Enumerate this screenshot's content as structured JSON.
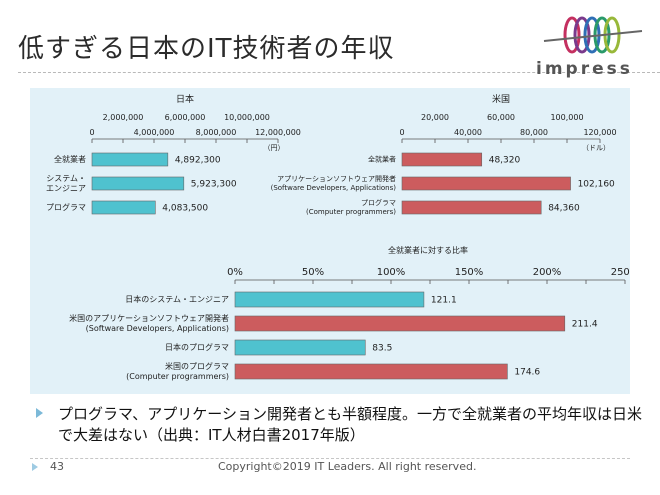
{
  "slide": {
    "title": "低すぎる日本のIT技術者の年収",
    "logo_text": "impress",
    "bullet": "プログラマ、アプリケーション開発者とも半額程度。一方で全就業者の平均年収は日米で大差はない（出典：IT人材白書2017年版）",
    "page_number": "43",
    "copyright": "Copyright©2019 IT Leaders. All right reserved."
  },
  "colors": {
    "japan": "#4fc2cf",
    "us": "#cc5c5e",
    "panel": "#e2f1f8"
  },
  "chart_data": [
    {
      "type": "bar",
      "orientation": "horizontal",
      "title": "日本",
      "unit": "（円）",
      "categories": [
        "全就業者",
        "システム・\nエンジニア",
        "プログラマ"
      ],
      "values": [
        4892300,
        5923300,
        4083500
      ],
      "value_labels": [
        "4,892,300",
        "5,923,300",
        "4,083,500"
      ],
      "xlim": [
        0,
        12000000
      ],
      "ticks_upper": [
        "2,000,000",
        "6,000,000",
        "10,000,000"
      ],
      "ticks_lower": [
        "0",
        "4,000,000",
        "8,000,000",
        "12,000,000"
      ]
    },
    {
      "type": "bar",
      "orientation": "horizontal",
      "title": "米国",
      "unit": "（ドル）",
      "categories": [
        "全就業者",
        "アプリケーションソフトウェア開発者\n(Software Developers, Applications)",
        "プログラマ\n(Computer programmers)"
      ],
      "values": [
        48320,
        102160,
        84360
      ],
      "value_labels": [
        "48,320",
        "102,160",
        "84,360"
      ],
      "xlim": [
        0,
        120000
      ],
      "ticks_upper": [
        "20,000",
        "60,000",
        "100,000"
      ],
      "ticks_lower": [
        "0",
        "40,000",
        "80,000",
        "120,000"
      ]
    },
    {
      "type": "bar",
      "orientation": "horizontal",
      "title": "全就業者に対する比率",
      "categories": [
        "日本のシステム・エンジニア",
        "米国のアプリケーションソフトウェア開発者\n(Software Developers, Applications)",
        "日本のプログラマ",
        "米国のプログラマ\n(Computer programmers)"
      ],
      "values": [
        121.1,
        211.4,
        83.5,
        174.6
      ],
      "value_labels": [
        "121.1",
        "211.4",
        "83.5",
        "174.6"
      ],
      "series_colors": [
        "japan",
        "us",
        "japan",
        "us"
      ],
      "xlim": [
        0,
        250
      ],
      "ticks": [
        "0%",
        "50%",
        "100%",
        "150%",
        "200%",
        "250%"
      ]
    }
  ]
}
